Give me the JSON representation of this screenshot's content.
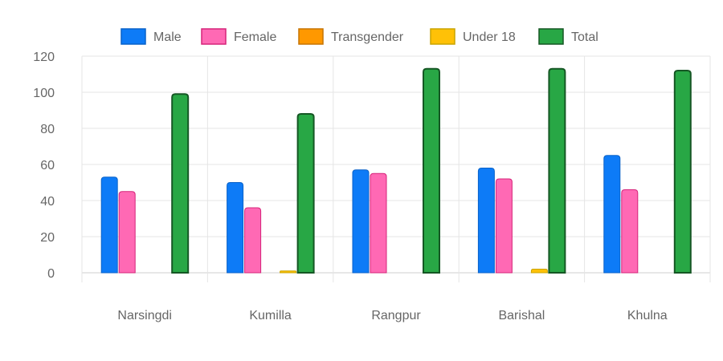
{
  "chart_data": {
    "type": "bar",
    "categories": [
      "Narsingdi",
      "Kumilla",
      "Rangpur",
      "Barishal",
      "Khulna"
    ],
    "series": [
      {
        "name": "Male",
        "values": [
          53,
          50,
          57,
          58,
          65
        ],
        "color": "#0d7bf7",
        "border": "#0a62c8"
      },
      {
        "name": "Female",
        "values": [
          45,
          36,
          55,
          52,
          46
        ],
        "color": "#ff69b4",
        "border": "#d6247a"
      },
      {
        "name": "Transgender",
        "values": [
          0,
          0,
          0,
          0,
          0
        ],
        "color": "#ff9800",
        "border": "#c67400"
      },
      {
        "name": "Under 18",
        "values": [
          0,
          1,
          0,
          2,
          0
        ],
        "color": "#ffc107",
        "border": "#c9a400"
      },
      {
        "name": "Total",
        "values": [
          99,
          88,
          113,
          113,
          112
        ],
        "color": "#28a745",
        "border": "#155724"
      }
    ],
    "ylim": [
      0,
      120
    ],
    "yticks": [
      "0",
      "20",
      "40",
      "60",
      "80",
      "100",
      "120"
    ],
    "grid": true,
    "legend_position": "top"
  }
}
